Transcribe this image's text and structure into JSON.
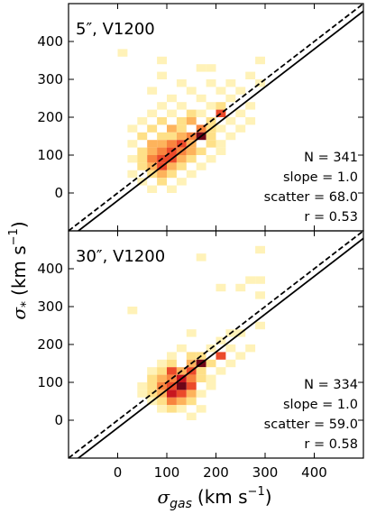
{
  "chart_data": [
    {
      "type": "heatmap",
      "title": "5″, V1200",
      "xlim": [
        -100,
        500
      ],
      "ylim": [
        -100,
        500
      ],
      "x_ticks": [
        "0",
        "100",
        "200",
        "300",
        "400"
      ],
      "y_ticks": [
        "0",
        "100",
        "200",
        "300",
        "400"
      ],
      "bin_size": 20,
      "stats": [
        "N = 341",
        "slope = 1.0",
        "scatter = 68.0",
        "r = 0.53"
      ],
      "fit_line": {
        "style": "solid",
        "slope": 1.0,
        "intercept": -20
      },
      "one_to_one_line": {
        "style": "dashed",
        "slope": 1.0,
        "intercept": 0
      },
      "bins": [
        {
          "x": 10,
          "y": 370,
          "c": 1
        },
        {
          "x": 90,
          "y": 350,
          "c": 1
        },
        {
          "x": 290,
          "y": 350,
          "c": 1
        },
        {
          "x": 170,
          "y": 330,
          "c": 1
        },
        {
          "x": 190,
          "y": 330,
          "c": 1
        },
        {
          "x": 90,
          "y": 310,
          "c": 1
        },
        {
          "x": 270,
          "y": 310,
          "c": 1
        },
        {
          "x": 130,
          "y": 290,
          "c": 1
        },
        {
          "x": 190,
          "y": 290,
          "c": 1
        },
        {
          "x": 230,
          "y": 290,
          "c": 1
        },
        {
          "x": 290,
          "y": 290,
          "c": 1
        },
        {
          "x": 70,
          "y": 270,
          "c": 1
        },
        {
          "x": 150,
          "y": 270,
          "c": 1
        },
        {
          "x": 210,
          "y": 270,
          "c": 1
        },
        {
          "x": 250,
          "y": 270,
          "c": 1
        },
        {
          "x": 110,
          "y": 250,
          "c": 1
        },
        {
          "x": 170,
          "y": 250,
          "c": 1
        },
        {
          "x": 230,
          "y": 250,
          "c": 1
        },
        {
          "x": 90,
          "y": 230,
          "c": 1
        },
        {
          "x": 130,
          "y": 230,
          "c": 1
        },
        {
          "x": 190,
          "y": 230,
          "c": 1
        },
        {
          "x": 210,
          "y": 230,
          "c": 2
        },
        {
          "x": 270,
          "y": 230,
          "c": 1
        },
        {
          "x": 70,
          "y": 210,
          "c": 1
        },
        {
          "x": 110,
          "y": 210,
          "c": 1
        },
        {
          "x": 150,
          "y": 210,
          "c": 2
        },
        {
          "x": 170,
          "y": 210,
          "c": 1
        },
        {
          "x": 210,
          "y": 210,
          "c": 5
        },
        {
          "x": 250,
          "y": 210,
          "c": 1
        },
        {
          "x": 50,
          "y": 190,
          "c": 1
        },
        {
          "x": 90,
          "y": 190,
          "c": 2
        },
        {
          "x": 130,
          "y": 190,
          "c": 2
        },
        {
          "x": 150,
          "y": 190,
          "c": 3
        },
        {
          "x": 190,
          "y": 190,
          "c": 2
        },
        {
          "x": 230,
          "y": 190,
          "c": 1
        },
        {
          "x": 270,
          "y": 190,
          "c": 1
        },
        {
          "x": 30,
          "y": 170,
          "c": 1
        },
        {
          "x": 70,
          "y": 170,
          "c": 2
        },
        {
          "x": 110,
          "y": 170,
          "c": 3
        },
        {
          "x": 130,
          "y": 170,
          "c": 2
        },
        {
          "x": 170,
          "y": 170,
          "c": 4
        },
        {
          "x": 190,
          "y": 170,
          "c": 2
        },
        {
          "x": 210,
          "y": 170,
          "c": 1
        },
        {
          "x": 250,
          "y": 170,
          "c": 1
        },
        {
          "x": 50,
          "y": 150,
          "c": 2
        },
        {
          "x": 90,
          "y": 150,
          "c": 2
        },
        {
          "x": 110,
          "y": 150,
          "c": 2
        },
        {
          "x": 130,
          "y": 150,
          "c": 3
        },
        {
          "x": 150,
          "y": 150,
          "c": 4
        },
        {
          "x": 170,
          "y": 150,
          "c": 9
        },
        {
          "x": 190,
          "y": 150,
          "c": 2
        },
        {
          "x": 230,
          "y": 150,
          "c": 1
        },
        {
          "x": 30,
          "y": 130,
          "c": 1
        },
        {
          "x": 70,
          "y": 130,
          "c": 3
        },
        {
          "x": 90,
          "y": 130,
          "c": 3
        },
        {
          "x": 110,
          "y": 130,
          "c": 4
        },
        {
          "x": 130,
          "y": 130,
          "c": 5
        },
        {
          "x": 150,
          "y": 130,
          "c": 3
        },
        {
          "x": 190,
          "y": 130,
          "c": 2
        },
        {
          "x": 210,
          "y": 130,
          "c": 1
        },
        {
          "x": 50,
          "y": 110,
          "c": 2
        },
        {
          "x": 70,
          "y": 110,
          "c": 3
        },
        {
          "x": 90,
          "y": 110,
          "c": 4
        },
        {
          "x": 110,
          "y": 110,
          "c": 6
        },
        {
          "x": 130,
          "y": 110,
          "c": 4
        },
        {
          "x": 150,
          "y": 110,
          "c": 3
        },
        {
          "x": 170,
          "y": 110,
          "c": 2
        },
        {
          "x": 210,
          "y": 110,
          "c": 1
        },
        {
          "x": 30,
          "y": 90,
          "c": 1
        },
        {
          "x": 50,
          "y": 90,
          "c": 2
        },
        {
          "x": 70,
          "y": 90,
          "c": 4
        },
        {
          "x": 90,
          "y": 90,
          "c": 6
        },
        {
          "x": 110,
          "y": 90,
          "c": 5
        },
        {
          "x": 130,
          "y": 90,
          "c": 3
        },
        {
          "x": 150,
          "y": 90,
          "c": 2
        },
        {
          "x": 190,
          "y": 90,
          "c": 1
        },
        {
          "x": 50,
          "y": 70,
          "c": 2
        },
        {
          "x": 70,
          "y": 70,
          "c": 3
        },
        {
          "x": 90,
          "y": 70,
          "c": 5
        },
        {
          "x": 110,
          "y": 70,
          "c": 3
        },
        {
          "x": 130,
          "y": 70,
          "c": 2
        },
        {
          "x": 170,
          "y": 70,
          "c": 1
        },
        {
          "x": 30,
          "y": 50,
          "c": 1
        },
        {
          "x": 70,
          "y": 50,
          "c": 2
        },
        {
          "x": 90,
          "y": 50,
          "c": 3
        },
        {
          "x": 110,
          "y": 50,
          "c": 2
        },
        {
          "x": 150,
          "y": 50,
          "c": 1
        },
        {
          "x": 50,
          "y": 30,
          "c": 1
        },
        {
          "x": 90,
          "y": 30,
          "c": 2
        },
        {
          "x": 130,
          "y": 30,
          "c": 1
        },
        {
          "x": 70,
          "y": 10,
          "c": 1
        },
        {
          "x": 110,
          "y": 10,
          "c": 1
        }
      ]
    },
    {
      "type": "heatmap",
      "title": "30″, V1200",
      "xlim": [
        -100,
        500
      ],
      "ylim": [
        -100,
        500
      ],
      "x_ticks": [
        "0",
        "100",
        "200",
        "300",
        "400"
      ],
      "y_ticks": [
        "0",
        "100",
        "200",
        "300",
        "400"
      ],
      "bin_size": 20,
      "stats": [
        "N = 334",
        "slope = 1.0",
        "scatter = 59.0",
        "r = 0.58"
      ],
      "fit_line": {
        "style": "solid",
        "slope": 1.0,
        "intercept": -20
      },
      "one_to_one_line": {
        "style": "dashed",
        "slope": 1.0,
        "intercept": 0
      },
      "bins": [
        {
          "x": 170,
          "y": 430,
          "c": 1
        },
        {
          "x": 290,
          "y": 450,
          "c": 1
        },
        {
          "x": 270,
          "y": 370,
          "c": 1
        },
        {
          "x": 290,
          "y": 370,
          "c": 1
        },
        {
          "x": 210,
          "y": 350,
          "c": 1
        },
        {
          "x": 250,
          "y": 350,
          "c": 1
        },
        {
          "x": 290,
          "y": 330,
          "c": 1
        },
        {
          "x": 30,
          "y": 290,
          "c": 1
        },
        {
          "x": 290,
          "y": 250,
          "c": 1
        },
        {
          "x": 230,
          "y": 230,
          "c": 1
        },
        {
          "x": 250,
          "y": 230,
          "c": 1
        },
        {
          "x": 150,
          "y": 230,
          "c": 1
        },
        {
          "x": 210,
          "y": 210,
          "c": 1
        },
        {
          "x": 130,
          "y": 190,
          "c": 1
        },
        {
          "x": 190,
          "y": 190,
          "c": 1
        },
        {
          "x": 230,
          "y": 190,
          "c": 1
        },
        {
          "x": 270,
          "y": 190,
          "c": 1
        },
        {
          "x": 110,
          "y": 170,
          "c": 1
        },
        {
          "x": 150,
          "y": 170,
          "c": 2
        },
        {
          "x": 170,
          "y": 170,
          "c": 2
        },
        {
          "x": 210,
          "y": 170,
          "c": 5
        },
        {
          "x": 250,
          "y": 170,
          "c": 1
        },
        {
          "x": 90,
          "y": 150,
          "c": 1
        },
        {
          "x": 110,
          "y": 150,
          "c": 2
        },
        {
          "x": 150,
          "y": 150,
          "c": 3
        },
        {
          "x": 170,
          "y": 150,
          "c": 9
        },
        {
          "x": 190,
          "y": 150,
          "c": 2
        },
        {
          "x": 230,
          "y": 150,
          "c": 1
        },
        {
          "x": 70,
          "y": 130,
          "c": 1
        },
        {
          "x": 90,
          "y": 130,
          "c": 2
        },
        {
          "x": 110,
          "y": 130,
          "c": 5
        },
        {
          "x": 130,
          "y": 130,
          "c": 3
        },
        {
          "x": 150,
          "y": 130,
          "c": 5
        },
        {
          "x": 170,
          "y": 130,
          "c": 2
        },
        {
          "x": 210,
          "y": 130,
          "c": 1
        },
        {
          "x": 70,
          "y": 110,
          "c": 2
        },
        {
          "x": 90,
          "y": 110,
          "c": 3
        },
        {
          "x": 110,
          "y": 110,
          "c": 4
        },
        {
          "x": 130,
          "y": 110,
          "c": 7
        },
        {
          "x": 150,
          "y": 110,
          "c": 4
        },
        {
          "x": 170,
          "y": 110,
          "c": 2
        },
        {
          "x": 190,
          "y": 110,
          "c": 1
        },
        {
          "x": 50,
          "y": 90,
          "c": 1
        },
        {
          "x": 70,
          "y": 90,
          "c": 2
        },
        {
          "x": 90,
          "y": 90,
          "c": 4
        },
        {
          "x": 110,
          "y": 90,
          "c": 6
        },
        {
          "x": 130,
          "y": 90,
          "c": 10
        },
        {
          "x": 150,
          "y": 90,
          "c": 5
        },
        {
          "x": 190,
          "y": 90,
          "c": 1
        },
        {
          "x": 50,
          "y": 70,
          "c": 1
        },
        {
          "x": 70,
          "y": 70,
          "c": 2
        },
        {
          "x": 90,
          "y": 70,
          "c": 3
        },
        {
          "x": 110,
          "y": 70,
          "c": 7
        },
        {
          "x": 130,
          "y": 70,
          "c": 5
        },
        {
          "x": 150,
          "y": 70,
          "c": 3
        },
        {
          "x": 170,
          "y": 70,
          "c": 1
        },
        {
          "x": 70,
          "y": 50,
          "c": 1
        },
        {
          "x": 90,
          "y": 50,
          "c": 2
        },
        {
          "x": 110,
          "y": 50,
          "c": 4
        },
        {
          "x": 130,
          "y": 50,
          "c": 3
        },
        {
          "x": 150,
          "y": 50,
          "c": 2
        },
        {
          "x": 90,
          "y": 30,
          "c": 1
        },
        {
          "x": 110,
          "y": 30,
          "c": 2
        },
        {
          "x": 130,
          "y": 30,
          "c": 1
        },
        {
          "x": 170,
          "y": 30,
          "c": 1
        },
        {
          "x": 150,
          "y": 10,
          "c": 1
        }
      ]
    }
  ],
  "shared_axes": {
    "xlabel_symbol": "σ",
    "xlabel_subscript": "gas",
    "xlabel_unit": "(km s",
    "xlabel_exp": "−1",
    "xlabel_close": ")",
    "ylabel_symbol": "σ",
    "ylabel_subscript": "*",
    "ylabel_unit": "(km s",
    "ylabel_exp": "−1",
    "ylabel_close": ")"
  },
  "colors": {
    "density_scale": [
      "#fff2b8",
      "#fee088",
      "#fdb35c",
      "#f8843e",
      "#eb4a2a",
      "#c8161f",
      "#6e0618"
    ],
    "axis": "#000000"
  }
}
